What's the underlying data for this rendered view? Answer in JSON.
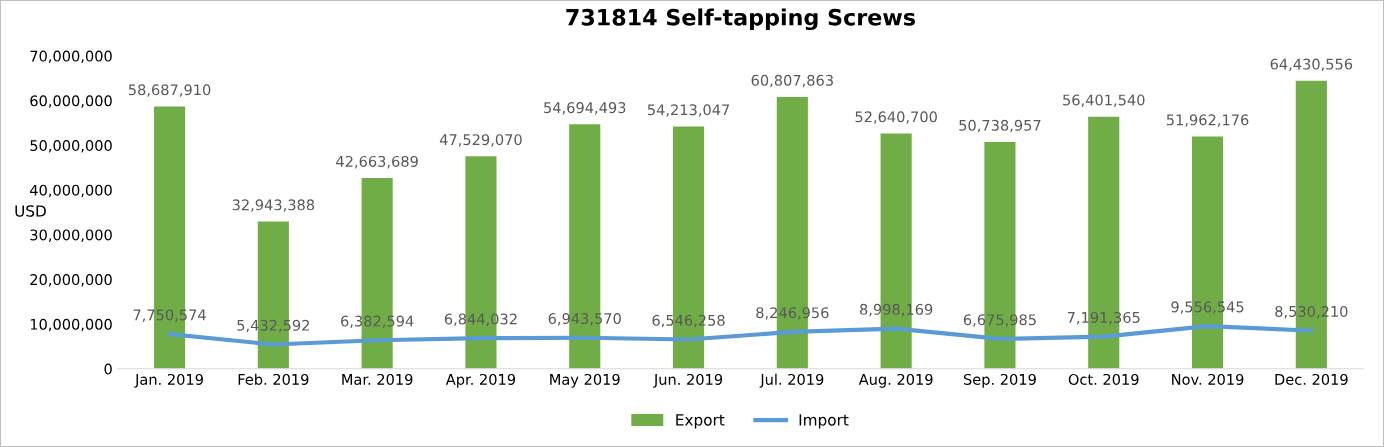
{
  "chart_data": {
    "type": "bar",
    "title": "731814 Self-tapping Screws",
    "ylabel": "USD",
    "categories": [
      "Jan. 2019",
      "Feb. 2019",
      "Mar. 2019",
      "Apr. 2019",
      "May 2019",
      "Jun. 2019",
      "Jul. 2019",
      "Aug. 2019",
      "Sep. 2019",
      "Oct. 2019",
      "Nov. 2019",
      "Dec. 2019"
    ],
    "series": [
      {
        "name": "Export",
        "color": "#70ad47",
        "values": [
          58687910,
          32943388,
          42663689,
          47529070,
          54694493,
          54213047,
          60807863,
          52640700,
          50738957,
          56401540,
          51962176,
          64430556
        ],
        "value_labels": [
          "58,687,910",
          "32,943,388",
          "42,663,689",
          "47,529,070",
          "54,694,493",
          "54,213,047",
          "60,807,863",
          "52,640,700",
          "50,738,957",
          "56,401,540",
          "51,962,176",
          "64,430,556"
        ]
      },
      {
        "name": "Import",
        "type": "line",
        "color": "#5b9bd5",
        "values": [
          7750574,
          5432592,
          6382594,
          6844032,
          6943570,
          6546258,
          8246956,
          8998169,
          6675985,
          7191365,
          9556545,
          8530210
        ],
        "value_labels": [
          "7,750,574",
          "5,432,592",
          "6,382,594",
          "6,844,032",
          "6,943,570",
          "6,546,258",
          "8,246,956",
          "8,998,169",
          "6,675,985",
          "7,191,365",
          "9,556,545",
          "8,530,210"
        ]
      }
    ],
    "ylim": [
      0,
      70000000
    ],
    "yticks": [
      {
        "value": 0,
        "label": "0"
      },
      {
        "value": 10000000,
        "label": "10,000,000"
      },
      {
        "value": 20000000,
        "label": "20,000,000"
      },
      {
        "value": 30000000,
        "label": "30,000,000"
      },
      {
        "value": 40000000,
        "label": "40,000,000"
      },
      {
        "value": 50000000,
        "label": "50,000,000"
      },
      {
        "value": 60000000,
        "label": "60,000,000"
      },
      {
        "value": 70000000,
        "label": "70,000,000"
      }
    ],
    "grid": false,
    "legend": "bottom",
    "marker": "none",
    "line_style": "solid"
  }
}
